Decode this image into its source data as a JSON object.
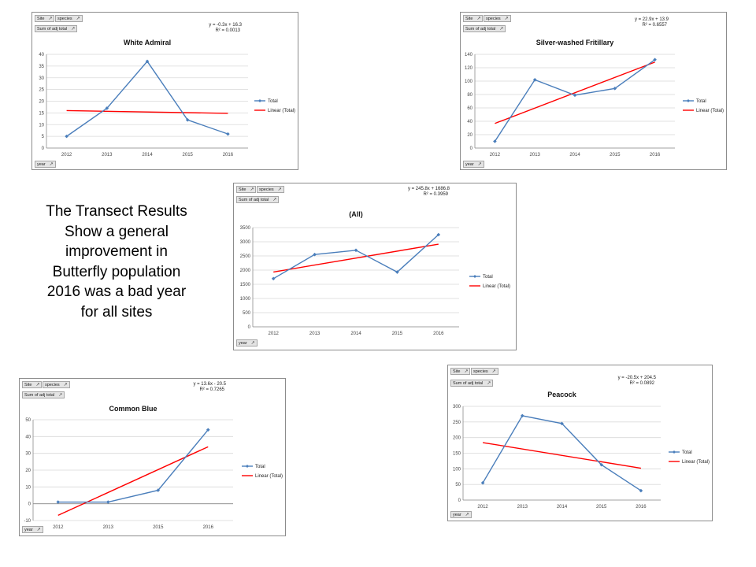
{
  "summary": {
    "lines": [
      "The Transect Results",
      "Show a general",
      "improvement  in",
      "Butterfly population",
      "2016 was a bad year",
      "for all sites"
    ]
  },
  "pivot": {
    "site": "Site",
    "species": "species",
    "sum": "Sum of adj total",
    "year": "year"
  },
  "legend": {
    "series": "Total",
    "trend": "Linear (Total)"
  },
  "colors": {
    "series": "#4a7ebb",
    "trend": "#ff0000",
    "grid": "#d9d9d9",
    "axis": "#8c8c8c"
  },
  "chart_data": [
    {
      "id": "white-admiral",
      "type": "line",
      "title": "White Admiral",
      "categories": [
        "2012",
        "2013",
        "2014",
        "2015",
        "2016"
      ],
      "series": [
        {
          "name": "Total",
          "values": [
            5,
            17,
            37,
            12,
            6
          ]
        }
      ],
      "trendline": {
        "name": "Linear (Total)",
        "equation": "y = -0.3x + 16.3",
        "r2": "R² = 0.0013",
        "start": 16.0,
        "end": 14.8
      },
      "ylim": [
        0,
        40
      ],
      "yticks": [
        0,
        5,
        10,
        15,
        20,
        25,
        30,
        35,
        40
      ],
      "xlabel": "",
      "ylabel": ""
    },
    {
      "id": "silver-washed-fritillary",
      "type": "line",
      "title": "Silver-washed Fritillary",
      "categories": [
        "2012",
        "2013",
        "2014",
        "2015",
        "2016"
      ],
      "series": [
        {
          "name": "Total",
          "values": [
            10,
            102,
            79,
            89,
            132
          ]
        }
      ],
      "trendline": {
        "name": "Linear (Total)",
        "equation": "y = 22.9x + 13.9",
        "r2": "R² = 0.6557",
        "start": 36.8,
        "end": 128.4
      },
      "ylim": [
        0,
        140
      ],
      "yticks": [
        0,
        20,
        40,
        60,
        80,
        100,
        120,
        140
      ],
      "xlabel": "",
      "ylabel": ""
    },
    {
      "id": "all-sites",
      "type": "line",
      "title": "(All)",
      "categories": [
        "2012",
        "2013",
        "2014",
        "2015",
        "2016"
      ],
      "series": [
        {
          "name": "Total",
          "values": [
            1700,
            2550,
            2700,
            1930,
            3250
          ]
        }
      ],
      "trendline": {
        "name": "Linear (Total)",
        "equation": "y = 245.8x + 1686.8",
        "r2": "R² = 0.3959",
        "start": 1932.6,
        "end": 2915.8
      },
      "ylim": [
        0,
        3500
      ],
      "yticks": [
        0,
        500,
        1000,
        1500,
        2000,
        2500,
        3000,
        3500
      ],
      "xlabel": "",
      "ylabel": ""
    },
    {
      "id": "common-blue",
      "type": "line",
      "title": "Common Blue",
      "categories": [
        "2012",
        "2013",
        "2015",
        "2016"
      ],
      "series": [
        {
          "name": "Total",
          "values": [
            1,
            1,
            8,
            44
          ]
        }
      ],
      "trendline": {
        "name": "Linear (Total)",
        "equation": "y = 13.6x - 20.5",
        "r2": "R² = 0.7265",
        "start": -6.9,
        "end": 33.9
      },
      "ylim": [
        -10,
        50
      ],
      "yticks": [
        -10,
        0,
        10,
        20,
        30,
        40,
        50
      ],
      "xlabel": "",
      "ylabel": ""
    },
    {
      "id": "peacock",
      "type": "line",
      "title": "Peacock",
      "categories": [
        "2012",
        "2013",
        "2014",
        "2015",
        "2016"
      ],
      "series": [
        {
          "name": "Total",
          "values": [
            55,
            270,
            245,
            113,
            30
          ]
        }
      ],
      "trendline": {
        "name": "Linear (Total)",
        "equation": "y = -20.5x + 204.5",
        "r2": "R² = 0.0892",
        "start": 184.0,
        "end": 102.0
      },
      "ylim": [
        0,
        300
      ],
      "yticks": [
        0,
        50,
        100,
        150,
        200,
        250,
        300
      ],
      "xlabel": "",
      "ylabel": ""
    }
  ]
}
